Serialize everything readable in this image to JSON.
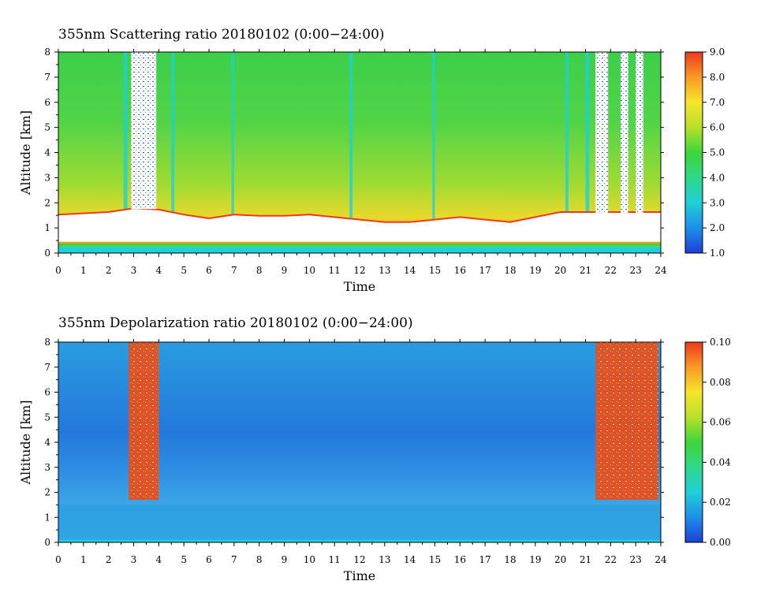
{
  "chart_data": [
    {
      "type": "heatmap",
      "title": "355nm Scattering ratio  20180102 (0:00−24:00)",
      "xlabel": "Time",
      "ylabel": "Altitude [km]",
      "xlim": [
        0,
        24
      ],
      "ylim": [
        0,
        8
      ],
      "x_ticks": [
        "0",
        "1",
        "2",
        "3",
        "4",
        "5",
        "6",
        "7",
        "8",
        "9",
        "10",
        "11",
        "12",
        "13",
        "14",
        "15",
        "16",
        "17",
        "18",
        "19",
        "20",
        "21",
        "22",
        "23",
        "24"
      ],
      "y_ticks": [
        "0",
        "1",
        "2",
        "3",
        "4",
        "5",
        "6",
        "7",
        "8"
      ],
      "colorbar": {
        "range": [
          1.0,
          9.0
        ],
        "ticks": [
          "1.0",
          "2.0",
          "3.0",
          "4.0",
          "5.0",
          "6.0",
          "7.0",
          "8.0",
          "9.0"
        ],
        "colors": [
          "#1f3fd8",
          "#1d8fe8",
          "#1fd0d8",
          "#2fd88a",
          "#3cd63a",
          "#b8e02a",
          "#f6e62a",
          "#f79a24",
          "#ee3a1c"
        ]
      },
      "layers": [
        {
          "name": "boundary layer top (km)",
          "times": [
            0,
            1,
            2,
            3,
            4,
            5,
            6,
            7,
            8,
            9,
            10,
            11,
            12,
            13,
            14,
            15,
            16,
            17,
            18,
            19,
            20,
            21,
            22,
            23,
            24
          ],
          "values": [
            1.5,
            1.55,
            1.6,
            1.75,
            1.7,
            1.5,
            1.35,
            1.5,
            1.45,
            1.45,
            1.5,
            1.4,
            1.3,
            1.2,
            1.2,
            1.3,
            1.4,
            1.3,
            1.2,
            1.4,
            1.6,
            1.6,
            1.6,
            1.6,
            1.6
          ]
        },
        {
          "name": "no-data gaps (h)",
          "intervals": [
            [
              2.9,
              3.9
            ],
            [
              21.4,
              21.9
            ],
            [
              22.4,
              22.7
            ],
            [
              23.0,
              23.3
            ]
          ]
        }
      ]
    },
    {
      "type": "heatmap",
      "title": "355nm Depolarization ratio  20180102 (0:00−24:00)",
      "xlabel": "Time",
      "ylabel": "Altitude [km]",
      "xlim": [
        0,
        24
      ],
      "ylim": [
        0,
        8
      ],
      "x_ticks": [
        "0",
        "1",
        "2",
        "3",
        "4",
        "5",
        "6",
        "7",
        "8",
        "9",
        "10",
        "11",
        "12",
        "13",
        "14",
        "15",
        "16",
        "17",
        "18",
        "19",
        "20",
        "21",
        "22",
        "23",
        "24"
      ],
      "y_ticks": [
        "0",
        "1",
        "2",
        "3",
        "4",
        "5",
        "6",
        "7",
        "8"
      ],
      "colorbar": {
        "range": [
          0.0,
          0.1
        ],
        "ticks": [
          "0.00",
          "0.02",
          "0.04",
          "0.06",
          "0.08",
          "0.10"
        ],
        "colors": [
          "#1f3fd8",
          "#1d8fe8",
          "#1fd0d8",
          "#2fd88a",
          "#3cd63a",
          "#b8e02a",
          "#f6e62a",
          "#f79a24",
          "#ee3a1c"
        ]
      },
      "layers": [
        {
          "name": "high depolarization column (h)",
          "intervals": [
            [
              2.8,
              4.0
            ],
            [
              21.4,
              23.9
            ]
          ]
        }
      ]
    }
  ]
}
